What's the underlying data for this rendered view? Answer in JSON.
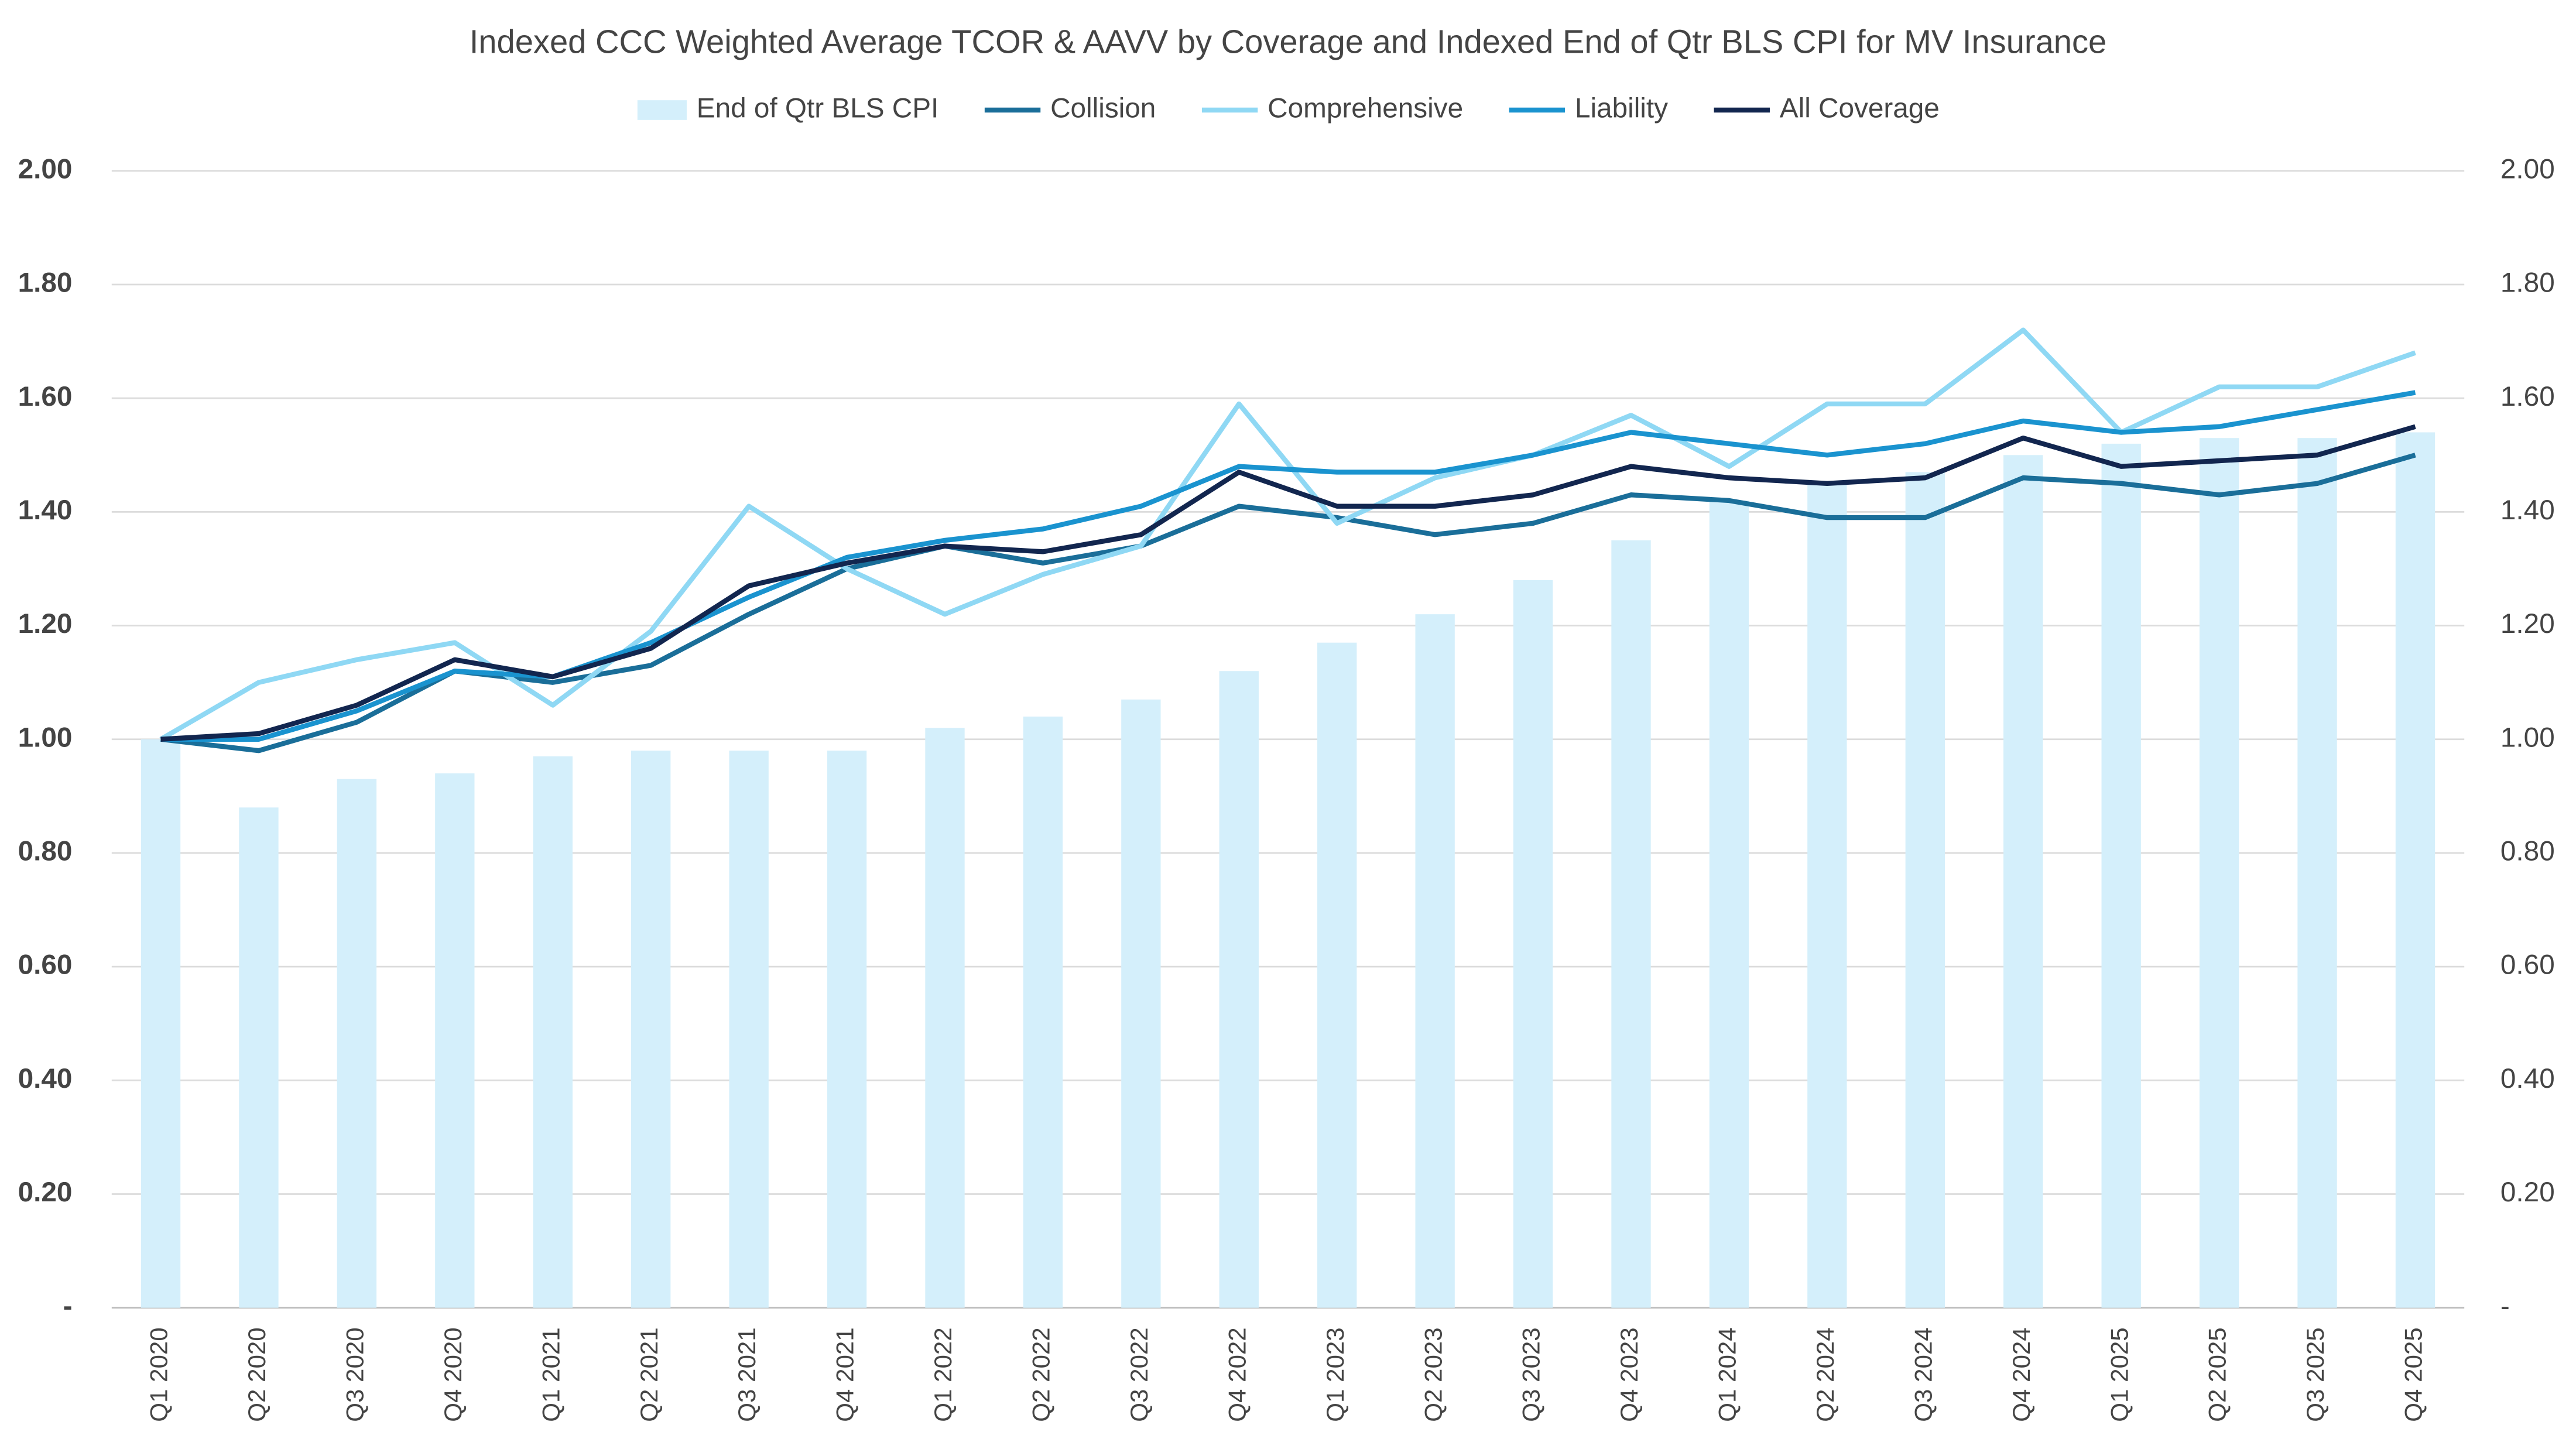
{
  "chart_data": {
    "type": "bar-line",
    "title": "Indexed CCC Weighted Average TCOR & AAVV by Coverage and Indexed End of Qtr BLS CPI for MV Insurance",
    "categories": [
      "Q1 2020",
      "Q2 2020",
      "Q3 2020",
      "Q4 2020",
      "Q1 2021",
      "Q2 2021",
      "Q3 2021",
      "Q4 2021",
      "Q1 2022",
      "Q2 2022",
      "Q3 2022",
      "Q4 2022",
      "Q1 2023",
      "Q2 2023",
      "Q3 2023",
      "Q4 2023",
      "Q1 2024",
      "Q2 2024",
      "Q3 2024",
      "Q4 2024",
      "Q1 2025",
      "Q2 2025",
      "Q3 2025",
      "Q4 2025"
    ],
    "series": [
      {
        "name": "End of Qtr BLS CPI",
        "type": "bar",
        "axis": "y2",
        "color": "#d4effb",
        "values": [
          1.0,
          0.88,
          0.93,
          0.94,
          0.97,
          0.98,
          0.98,
          0.98,
          1.02,
          1.04,
          1.07,
          1.12,
          1.17,
          1.22,
          1.28,
          1.35,
          1.42,
          1.45,
          1.47,
          1.5,
          1.52,
          1.53,
          1.53,
          1.54
        ]
      },
      {
        "name": "Collision",
        "type": "line",
        "color": "#1a6e99",
        "values": [
          1.0,
          0.98,
          1.03,
          1.12,
          1.1,
          1.13,
          1.22,
          1.3,
          1.34,
          1.31,
          1.34,
          1.41,
          1.39,
          1.36,
          1.38,
          1.43,
          1.42,
          1.39,
          1.39,
          1.46,
          1.45,
          1.43,
          1.45,
          1.5
        ]
      },
      {
        "name": "Comprehensive",
        "type": "line",
        "color": "#8fd8f4",
        "values": [
          1.0,
          1.1,
          1.14,
          1.17,
          1.06,
          1.19,
          1.41,
          1.3,
          1.22,
          1.29,
          1.34,
          1.59,
          1.38,
          1.46,
          1.5,
          1.57,
          1.48,
          1.59,
          1.59,
          1.72,
          1.54,
          1.62,
          1.62,
          1.68
        ]
      },
      {
        "name": "Liability",
        "type": "line",
        "color": "#1a93cf",
        "values": [
          1.0,
          1.0,
          1.05,
          1.12,
          1.11,
          1.17,
          1.25,
          1.32,
          1.35,
          1.37,
          1.41,
          1.48,
          1.47,
          1.47,
          1.5,
          1.54,
          1.52,
          1.5,
          1.52,
          1.56,
          1.54,
          1.55,
          1.58,
          1.61
        ]
      },
      {
        "name": "All Coverage",
        "type": "line",
        "color": "#12264f",
        "values": [
          1.0,
          1.01,
          1.06,
          1.14,
          1.11,
          1.16,
          1.27,
          1.31,
          1.34,
          1.33,
          1.36,
          1.47,
          1.41,
          1.41,
          1.43,
          1.48,
          1.46,
          1.45,
          1.46,
          1.53,
          1.48,
          1.49,
          1.5,
          1.55
        ]
      }
    ],
    "ylim": [
      0,
      2
    ],
    "yticks": [
      {
        "value": 0,
        "label": "-"
      },
      {
        "value": 0.2,
        "label": "0.20"
      },
      {
        "value": 0.4,
        "label": "0.40"
      },
      {
        "value": 0.6,
        "label": "0.60"
      },
      {
        "value": 0.8,
        "label": "0.80"
      },
      {
        "value": 1,
        "label": "1.00"
      },
      {
        "value": 1.2,
        "label": "1.20"
      },
      {
        "value": 1.4,
        "label": "1.40"
      },
      {
        "value": 1.6,
        "label": "1.60"
      },
      {
        "value": 1.8,
        "label": "1.80"
      },
      {
        "value": 2,
        "label": "2.00"
      }
    ],
    "y2lim": [
      0,
      2
    ],
    "y2ticks": [
      {
        "value": 0,
        "label": "-"
      },
      {
        "value": 0.2,
        "label": "0.20"
      },
      {
        "value": 0.4,
        "label": "0.40"
      },
      {
        "value": 0.6,
        "label": "0.60"
      },
      {
        "value": 0.8,
        "label": "0.80"
      },
      {
        "value": 1,
        "label": "1.00"
      },
      {
        "value": 1.2,
        "label": "1.20"
      },
      {
        "value": 1.4,
        "label": "1.40"
      },
      {
        "value": 1.6,
        "label": "1.60"
      },
      {
        "value": 1.8,
        "label": "1.80"
      },
      {
        "value": 2,
        "label": "2.00"
      }
    ],
    "grid": true,
    "legend": "top"
  }
}
